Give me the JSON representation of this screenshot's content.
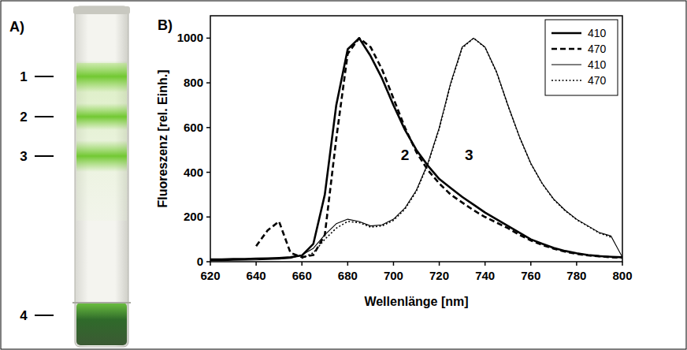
{
  "panel_a": {
    "label": "A)",
    "band_labels": [
      "1",
      "2",
      "3",
      "4"
    ]
  },
  "chart_data": {
    "type": "line",
    "panel_label": "B)",
    "x_label": "Wellenlänge [nm]",
    "y_label": "Fluoreszenz [rel. Einh.]",
    "x": [
      620,
      625,
      630,
      635,
      640,
      645,
      650,
      655,
      660,
      665,
      670,
      675,
      680,
      685,
      690,
      695,
      700,
      705,
      710,
      715,
      720,
      725,
      730,
      735,
      740,
      745,
      750,
      755,
      760,
      765,
      770,
      775,
      780,
      785,
      790,
      795,
      800
    ],
    "xlim": [
      620,
      800
    ],
    "xticks": [
      620,
      640,
      660,
      680,
      700,
      720,
      740,
      760,
      780,
      800
    ],
    "ylim": [
      0,
      1100
    ],
    "yticks": [
      0,
      200,
      400,
      600,
      800,
      1000
    ],
    "grid": false,
    "legend": "top-right",
    "series": [
      {
        "name": "410",
        "color": "#000000",
        "line_style": "solid",
        "values": [
          10,
          10,
          12,
          12,
          14,
          15,
          17,
          20,
          28,
          80,
          300,
          700,
          950,
          1000,
          920,
          820,
          700,
          590,
          500,
          430,
          370,
          330,
          290,
          255,
          220,
          190,
          160,
          130,
          100,
          80,
          62,
          48,
          38,
          30,
          25,
          22,
          20
        ]
      },
      {
        "name": "470",
        "color": "#000000",
        "line_style": "dashed",
        "values": [
          null,
          null,
          null,
          null,
          70,
          140,
          180,
          40,
          20,
          30,
          120,
          550,
          930,
          1000,
          960,
          860,
          730,
          600,
          490,
          410,
          350,
          300,
          265,
          230,
          200,
          175,
          150,
          120,
          95,
          75,
          58,
          45,
          35,
          28,
          24,
          20,
          18
        ]
      },
      {
        "name": "410",
        "color": "#000000",
        "line_style": "solid",
        "values": [
          5,
          5,
          6,
          7,
          8,
          10,
          12,
          15,
          30,
          60,
          120,
          170,
          190,
          180,
          160,
          165,
          190,
          240,
          320,
          440,
          600,
          800,
          960,
          1000,
          960,
          850,
          700,
          560,
          440,
          350,
          280,
          230,
          190,
          160,
          130,
          115,
          20
        ]
      },
      {
        "name": "470",
        "color": "#000000",
        "line_style": "dotted",
        "values": [
          null,
          null,
          null,
          null,
          null,
          null,
          null,
          null,
          15,
          40,
          100,
          150,
          180,
          175,
          155,
          160,
          185,
          235,
          315,
          435,
          595,
          795,
          955,
          1000,
          958,
          848,
          698,
          558,
          438,
          348,
          278,
          228,
          188,
          158,
          128,
          110,
          null
        ]
      }
    ],
    "annotations": [
      {
        "text": "2",
        "x": 705,
        "y": 480
      },
      {
        "text": "3",
        "x": 733,
        "y": 480
      }
    ]
  }
}
